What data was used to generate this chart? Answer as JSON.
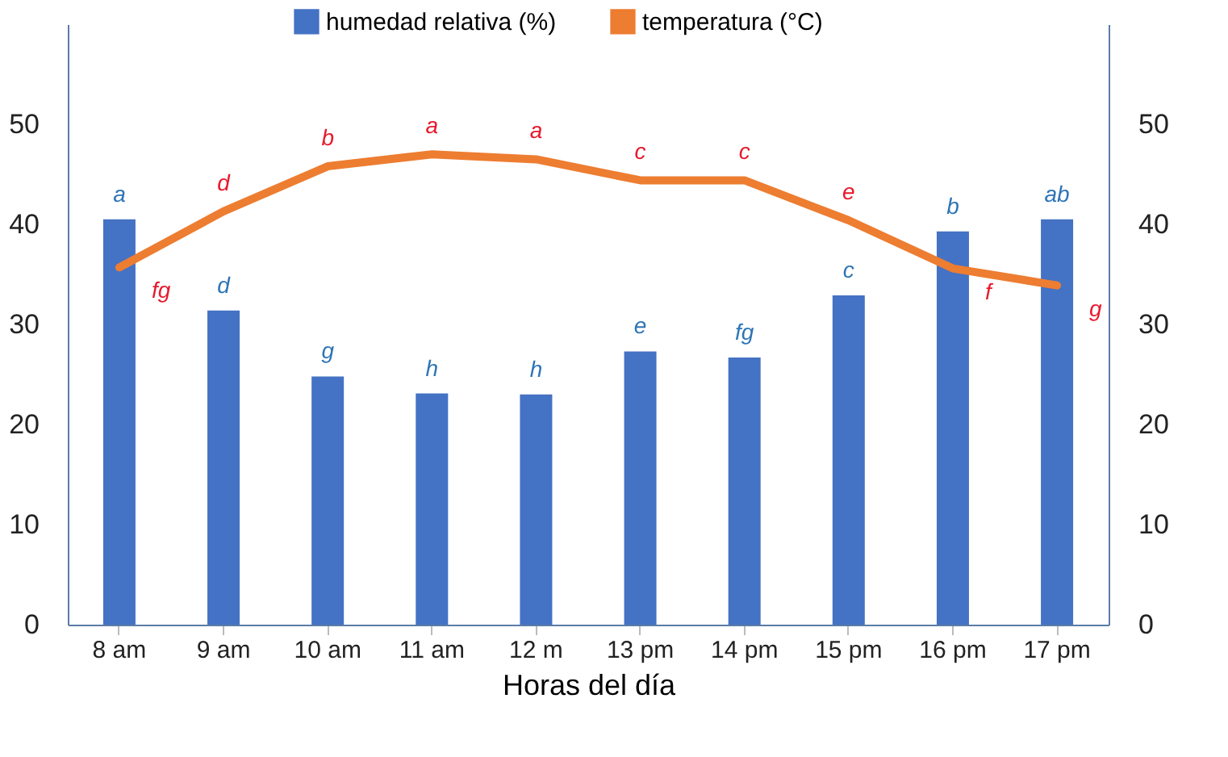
{
  "chart_data": {
    "type": "bar",
    "categories": [
      "8 am",
      "9 am",
      "10 am",
      "11 am",
      "12 m",
      "13 pm",
      "14 pm",
      "15 pm",
      "16 pm",
      "17 pm"
    ],
    "xlabel": "Horas del día",
    "series": [
      {
        "name": "humedad relativa (%)",
        "color": "#4472c4",
        "values": [
          40.5,
          31.4,
          24.8,
          23.1,
          23.0,
          27.3,
          26.7,
          32.9,
          39.3,
          40.5
        ],
        "value_labels": [
          "a",
          "d",
          "g",
          "h",
          "h",
          "e",
          "fg",
          "c",
          "b",
          "ab"
        ]
      },
      {
        "name": "temperatura (°C)",
        "color": "#ed7d31",
        "type": "line",
        "axis": "y2",
        "values": [
          35.7,
          41.3,
          45.8,
          47.0,
          46.5,
          44.4,
          44.4,
          40.4,
          35.6,
          33.9
        ],
        "value_labels": [
          "fg",
          "d",
          "b",
          "a",
          "a",
          "c",
          "c",
          "e",
          "f",
          "g"
        ]
      }
    ],
    "ylim": [
      0,
      60
    ],
    "yticks": [
      0,
      10,
      20,
      30,
      40,
      50
    ],
    "y2lim": [
      0,
      60
    ],
    "y2ticks": [
      0,
      10,
      20,
      30,
      40,
      50
    ],
    "grid": false,
    "legend": "top",
    "marker": "none",
    "line_style": "solid"
  }
}
